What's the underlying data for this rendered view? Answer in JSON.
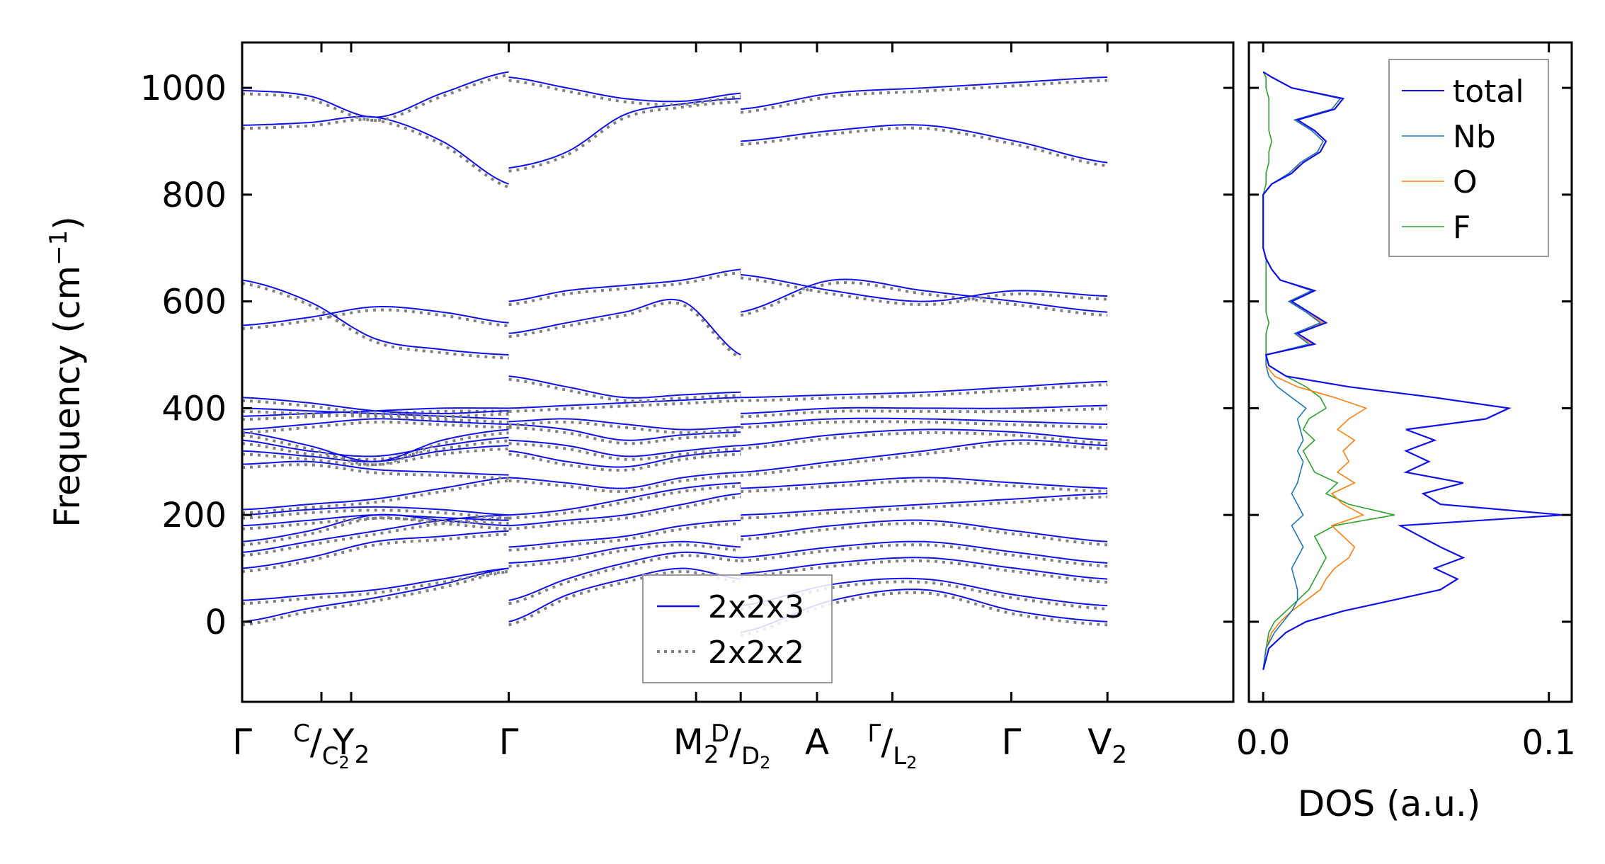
{
  "chart_data": [
    {
      "type": "line",
      "title": "",
      "ylabel_main": "Frequency (cm",
      "ylabel_sup": "−1",
      "ylabel_tail": ")",
      "xlabel": "",
      "ylim": [
        -150,
        1085
      ],
      "yticks": [
        0,
        200,
        400,
        600,
        800,
        1000
      ],
      "ytick_labels": [
        "0",
        "200",
        "400",
        "600",
        "800",
        "1000"
      ],
      "path_points": [
        0,
        0.08,
        0.11,
        0.269,
        0.458,
        0.503,
        0.58,
        0.656,
        0.776,
        0.873
      ],
      "kpath": [
        {
          "main": "Γ",
          "sub": "",
          "sup": ""
        },
        {
          "main": "/",
          "sub": "C",
          "sup": "C"
        },
        {
          "main": "Y",
          "sub": "2",
          "sup": ""
        },
        {
          "main": "Γ",
          "sub": "",
          "sup": ""
        },
        {
          "main": "M",
          "sub": "2",
          "sup": ""
        },
        {
          "main": "/",
          "sub": "D",
          "sup": "D"
        },
        {
          "main": "A",
          "sub": "",
          "sup": ""
        },
        {
          "main": "/",
          "sub": "L",
          "sup": "Γ"
        },
        {
          "main": "Γ",
          "sub": "",
          "sup": ""
        },
        {
          "main": "V",
          "sub": "2",
          "sup": ""
        }
      ],
      "kpath_subscript_digits": [
        "2",
        "2",
        "2"
      ],
      "segments": [
        {
          "range": [
            0,
            0.269
          ],
          "bands": [
            [
              0,
              25,
              45,
              70,
              100
            ],
            [
              40,
              50,
              60,
              80,
              100
            ],
            [
              100,
              120,
              150,
              160,
              170
            ],
            [
              130,
              150,
              170,
              190,
              200
            ],
            [
              150,
              170,
              200,
              190,
              180
            ],
            [
              180,
              190,
              200,
              195,
              190
            ],
            [
              200,
              210,
              215,
              210,
              200
            ],
            [
              210,
              220,
              230,
              250,
              270
            ],
            [
              295,
              300,
              285,
              280,
              275
            ],
            [
              320,
              310,
              300,
              320,
              330
            ],
            [
              340,
              320,
              310,
              330,
              345
            ],
            [
              355,
              330,
              300,
              340,
              360
            ],
            [
              360,
              370,
              380,
              375,
              370
            ],
            [
              385,
              390,
              395,
              400,
              400
            ],
            [
              400,
              395,
              390,
              385,
              380
            ],
            [
              420,
              410,
              395,
              390,
              395
            ],
            [
              555,
              570,
              590,
              580,
              560
            ],
            [
              640,
              600,
              530,
              510,
              500
            ],
            [
              930,
              935,
              945,
              900,
              820
            ],
            [
              995,
              985,
              945,
              990,
              1030
            ]
          ]
        },
        {
          "range": [
            0.269,
            0.503
          ],
          "bands": [
            [
              0,
              50,
              80,
              100,
              80
            ],
            [
              40,
              80,
              110,
              130,
              120
            ],
            [
              110,
              120,
              140,
              150,
              140
            ],
            [
              140,
              150,
              160,
              180,
              190
            ],
            [
              180,
              190,
              200,
              220,
              240
            ],
            [
              200,
              210,
              230,
              250,
              260
            ],
            [
              270,
              260,
              250,
              270,
              280
            ],
            [
              320,
              300,
              290,
              310,
              320
            ],
            [
              340,
              330,
              310,
              320,
              330
            ],
            [
              370,
              360,
              340,
              350,
              355
            ],
            [
              375,
              380,
              370,
              360,
              365
            ],
            [
              400,
              405,
              410,
              415,
              420
            ],
            [
              460,
              440,
              420,
              425,
              430
            ],
            [
              540,
              560,
              580,
              600,
              500
            ],
            [
              600,
              620,
              630,
              640,
              660
            ],
            [
              850,
              880,
              950,
              970,
              980
            ],
            [
              1020,
              1000,
              980,
              975,
              990
            ]
          ]
        },
        {
          "range": [
            0.503,
            0.873
          ],
          "bands": [
            [
              -20,
              40,
              60,
              20,
              0
            ],
            [
              30,
              70,
              80,
              50,
              30
            ],
            [
              90,
              110,
              120,
              100,
              80
            ],
            [
              120,
              140,
              150,
              130,
              110
            ],
            [
              160,
              180,
              190,
              170,
              150
            ],
            [
              200,
              210,
              220,
              230,
              240
            ],
            [
              250,
              260,
              270,
              260,
              250
            ],
            [
              280,
              300,
              320,
              340,
              330
            ],
            [
              330,
              350,
              360,
              355,
              340
            ],
            [
              370,
              380,
              380,
              375,
              370
            ],
            [
              390,
              400,
              400,
              400,
              405
            ],
            [
              420,
              425,
              430,
              440,
              450
            ],
            [
              580,
              640,
              620,
              600,
              580
            ],
            [
              650,
              620,
              600,
              620,
              610
            ],
            [
              900,
              920,
              930,
              900,
              860
            ],
            [
              960,
              990,
              1000,
              1010,
              1020
            ]
          ]
        }
      ],
      "legend": [
        {
          "label": "2x2x3",
          "color": "#1010e8",
          "style": "solid"
        },
        {
          "label": "2x2x2",
          "color": "#808080",
          "style": "dotted"
        }
      ]
    },
    {
      "type": "line",
      "xlabel": "DOS (a.u.)",
      "ylabel": "",
      "xlim": [
        -0.005,
        0.108
      ],
      "xticks": [
        0.0,
        0.1
      ],
      "xtick_labels": [
        "0.0",
        "0.1"
      ],
      "ylim": [
        -150,
        1085
      ],
      "freq": [
        -90,
        -50,
        -20,
        0,
        20,
        40,
        60,
        80,
        100,
        120,
        140,
        160,
        180,
        200,
        220,
        240,
        260,
        280,
        300,
        320,
        340,
        360,
        380,
        400,
        420,
        440,
        460,
        480,
        500,
        520,
        540,
        560,
        580,
        600,
        620,
        640,
        660,
        680,
        700,
        800,
        820,
        840,
        860,
        880,
        900,
        920,
        940,
        960,
        980,
        1000,
        1020,
        1030
      ],
      "series": [
        {
          "name": "total",
          "color": "#1010e8",
          "values": [
            0.0,
            0.002,
            0.008,
            0.015,
            0.028,
            0.045,
            0.062,
            0.068,
            0.06,
            0.07,
            0.062,
            0.055,
            0.048,
            0.105,
            0.062,
            0.056,
            0.07,
            0.05,
            0.058,
            0.05,
            0.06,
            0.05,
            0.078,
            0.086,
            0.06,
            0.03,
            0.008,
            0.002,
            0.001,
            0.018,
            0.012,
            0.022,
            0.016,
            0.01,
            0.018,
            0.006,
            0.003,
            0.001,
            0.0,
            0.0,
            0.003,
            0.01,
            0.014,
            0.02,
            0.022,
            0.018,
            0.012,
            0.025,
            0.028,
            0.01,
            0.003,
            0.0
          ]
        },
        {
          "name": "Nb",
          "color": "#1f77b4",
          "values": [
            0.0,
            0.001,
            0.004,
            0.007,
            0.01,
            0.012,
            0.012,
            0.011,
            0.01,
            0.012,
            0.014,
            0.012,
            0.01,
            0.014,
            0.012,
            0.01,
            0.012,
            0.013,
            0.014,
            0.012,
            0.014,
            0.013,
            0.012,
            0.015,
            0.01,
            0.005,
            0.002,
            0.001,
            0.001,
            0.016,
            0.011,
            0.02,
            0.015,
            0.009,
            0.017,
            0.006,
            0.003,
            0.001,
            0.0,
            0.0,
            0.003,
            0.009,
            0.013,
            0.019,
            0.021,
            0.017,
            0.011,
            0.024,
            0.027,
            0.01,
            0.003,
            0.0
          ]
        },
        {
          "name": "O",
          "color": "#ff7f0e",
          "values": [
            0.0,
            0.001,
            0.003,
            0.006,
            0.01,
            0.015,
            0.02,
            0.022,
            0.025,
            0.03,
            0.032,
            0.028,
            0.024,
            0.035,
            0.028,
            0.024,
            0.032,
            0.026,
            0.03,
            0.028,
            0.032,
            0.026,
            0.03,
            0.036,
            0.025,
            0.012,
            0.004,
            0.001,
            0.001,
            0.017,
            0.011,
            0.021,
            0.015,
            0.009,
            0.017,
            0.006,
            0.003,
            0.001,
            0.0,
            0.0,
            0.003,
            0.01,
            0.013,
            0.019,
            0.021,
            0.017,
            0.011,
            0.024,
            0.027,
            0.01,
            0.003,
            0.0
          ]
        },
        {
          "name": "F",
          "color": "#2ca02c",
          "values": [
            0.0,
            0.001,
            0.002,
            0.004,
            0.008,
            0.012,
            0.016,
            0.018,
            0.02,
            0.022,
            0.02,
            0.018,
            0.025,
            0.046,
            0.03,
            0.022,
            0.026,
            0.018,
            0.016,
            0.014,
            0.018,
            0.014,
            0.016,
            0.022,
            0.02,
            0.015,
            0.008,
            0.002,
            0.001,
            0.001,
            0.001,
            0.002,
            0.001,
            0.001,
            0.001,
            0.001,
            0.001,
            0.001,
            0.0,
            0.0,
            0.001,
            0.001,
            0.002,
            0.002,
            0.003,
            0.002,
            0.002,
            0.002,
            0.002,
            0.001,
            0.001,
            0.0
          ]
        }
      ],
      "legend_placement": "top-right"
    }
  ]
}
